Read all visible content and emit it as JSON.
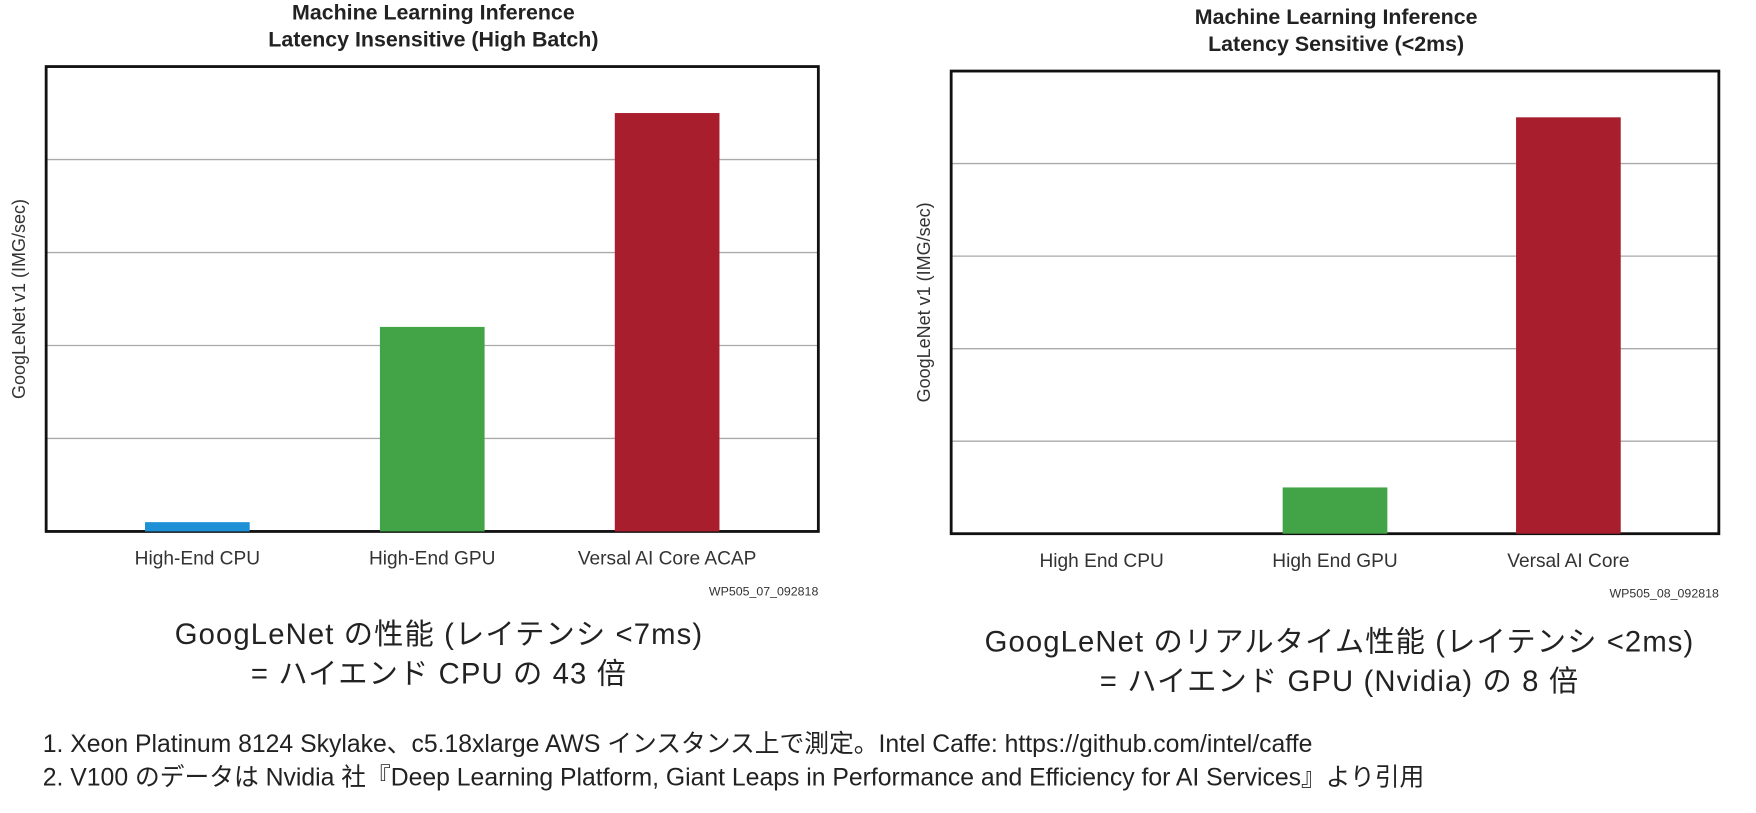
{
  "chart_data": [
    {
      "type": "bar",
      "title": [
        "Machine Learning Inference",
        "Latency Insensitive (High Batch)"
      ],
      "y_label": "GoogLeNet v1 (IMG/sec)",
      "categories": [
        "High-End CPU",
        "High-End GPU",
        "Versal AI Core ACAP"
      ],
      "values": [
        0.1,
        2.2,
        4.5
      ],
      "colors": [
        "#1e90d6",
        "#43a447",
        "#a91e2d"
      ],
      "ylim": [
        0,
        5
      ],
      "yticks": [
        0,
        1,
        2,
        3,
        4,
        5
      ],
      "tick_labels": false,
      "grid": true,
      "source": "WP505_07_092818"
    },
    {
      "type": "bar",
      "title": [
        "Machine Learning Inference",
        "Latency Sensitive (<2ms)"
      ],
      "y_label": "GoogLeNet v1 (IMG/sec)",
      "categories": [
        "High End CPU",
        "High End GPU",
        "Versal AI Core"
      ],
      "values": [
        0,
        0.5,
        4.5
      ],
      "colors": [
        "#1e90d6",
        "#43a447",
        "#a91e2d"
      ],
      "ylim": [
        0,
        5
      ],
      "yticks": [
        0,
        1,
        2,
        3,
        4,
        5
      ],
      "tick_labels": false,
      "grid": true,
      "source": "WP505_08_092818"
    }
  ],
  "captions": [
    [
      "GoogLeNet の性能 (レイテンシ <7ms)",
      "= ハイエンド CPU の 43 倍"
    ],
    [
      "GoogLeNet のリアルタイム性能 (レイテンシ <2ms)",
      "= ハイエンド GPU (Nvidia) の 8 倍"
    ]
  ],
  "notes": [
    "1. Xeon Platinum 8124 Skylake、c5.18xlarge AWS インスタンス上で測定。Intel Caffe: https://github.com/intel/caffe",
    "2. V100 のデータは Nvidia 社『Deep Learning Platform, Giant Leaps in Performance and Efficiency for AI Services』より引用"
  ]
}
